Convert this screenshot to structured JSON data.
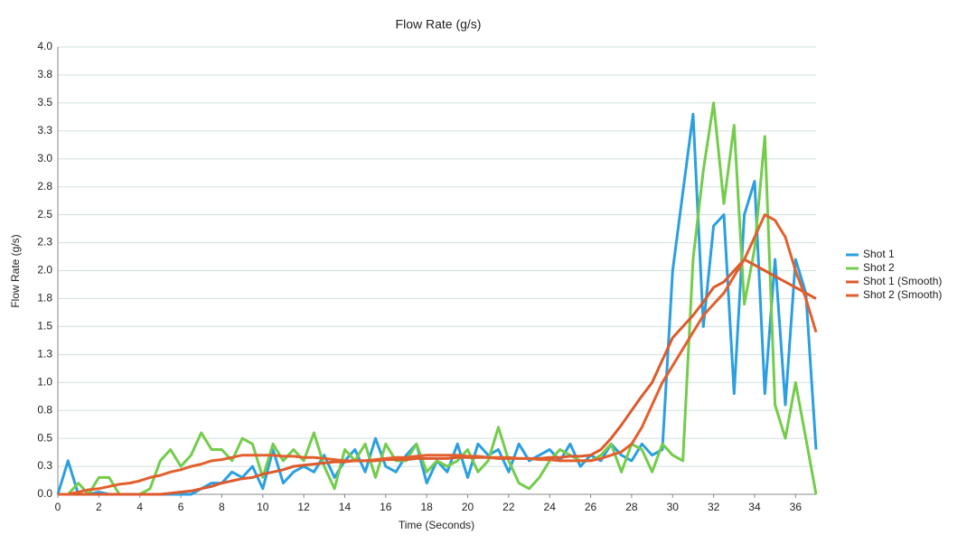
{
  "chart_data": {
    "type": "line",
    "title": "Flow Rate (g/s)",
    "x_label": "Time (Seconds)",
    "y_label": "Flow Rate (g/s)",
    "x": [
      0,
      0.5,
      1,
      1.5,
      2,
      2.5,
      3,
      3.5,
      4,
      4.5,
      5,
      5.5,
      6,
      6.5,
      7,
      7.5,
      8,
      8.5,
      9,
      9.5,
      10,
      10.5,
      11,
      11.5,
      12,
      12.5,
      13,
      13.5,
      14,
      14.5,
      15,
      15.5,
      16,
      16.5,
      17,
      17.5,
      18,
      18.5,
      19,
      19.5,
      20,
      20.5,
      21,
      21.5,
      22,
      22.5,
      23,
      23.5,
      24,
      24.5,
      25,
      25.5,
      26,
      26.5,
      27,
      27.5,
      28,
      28.5,
      29,
      29.5,
      30,
      30.5,
      31,
      31.5,
      32,
      32.5,
      33,
      33.5,
      34,
      34.5,
      35,
      35.5,
      36,
      36.5,
      37
    ],
    "series": [
      {
        "name": "Shot 1",
        "color": "#2b9fe0",
        "values": [
          0,
          0.3,
          0,
          0,
          0.02,
          0,
          0,
          0,
          0,
          0,
          0,
          0,
          0,
          0,
          0.05,
          0.1,
          0.1,
          0.2,
          0.15,
          0.25,
          0.05,
          0.4,
          0.1,
          0.2,
          0.25,
          0.2,
          0.35,
          0.15,
          0.3,
          0.4,
          0.2,
          0.5,
          0.25,
          0.2,
          0.35,
          0.45,
          0.1,
          0.3,
          0.2,
          0.45,
          0.15,
          0.45,
          0.35,
          0.4,
          0.2,
          0.45,
          0.3,
          0.35,
          0.4,
          0.3,
          0.45,
          0.25,
          0.35,
          0.3,
          0.45,
          0.35,
          0.3,
          0.45,
          0.35,
          0.4,
          2.0,
          2.7,
          3.4,
          1.5,
          2.4,
          2.5,
          0.9,
          2.5,
          2.8,
          0.9,
          2.1,
          0.8,
          2.1,
          1.8,
          0.4
        ]
      },
      {
        "name": "Shot 2",
        "color": "#74cc4b",
        "values": [
          0,
          0,
          0.1,
          0,
          0.15,
          0.15,
          0,
          0,
          0,
          0.05,
          0.3,
          0.4,
          0.25,
          0.35,
          0.55,
          0.4,
          0.4,
          0.3,
          0.5,
          0.45,
          0.15,
          0.45,
          0.3,
          0.4,
          0.3,
          0.55,
          0.25,
          0.05,
          0.4,
          0.3,
          0.45,
          0.15,
          0.45,
          0.3,
          0.3,
          0.45,
          0.2,
          0.3,
          0.25,
          0.3,
          0.4,
          0.2,
          0.3,
          0.6,
          0.3,
          0.1,
          0.05,
          0.15,
          0.3,
          0.4,
          0.35,
          0.3,
          0.3,
          0.35,
          0.45,
          0.2,
          0.45,
          0.4,
          0.2,
          0.45,
          0.35,
          0.3,
          2.1,
          2.9,
          3.5,
          2.6,
          3.3,
          1.7,
          2.2,
          3.2,
          0.8,
          0.5,
          1.0,
          0.5,
          0
        ]
      },
      {
        "name": "Shot 1 (Smooth)",
        "color": "#dc5a2c",
        "values": [
          0,
          0,
          0,
          0,
          0,
          0,
          0,
          0,
          0,
          0,
          0,
          0.01,
          0.02,
          0.03,
          0.05,
          0.07,
          0.1,
          0.12,
          0.14,
          0.15,
          0.18,
          0.2,
          0.22,
          0.25,
          0.26,
          0.27,
          0.28,
          0.29,
          0.29,
          0.3,
          0.3,
          0.3,
          0.31,
          0.31,
          0.31,
          0.32,
          0.32,
          0.32,
          0.32,
          0.33,
          0.33,
          0.33,
          0.33,
          0.32,
          0.32,
          0.32,
          0.32,
          0.32,
          0.33,
          0.33,
          0.34,
          0.34,
          0.35,
          0.4,
          0.5,
          0.62,
          0.75,
          0.88,
          1.0,
          1.2,
          1.4,
          1.5,
          1.6,
          1.72,
          1.85,
          1.9,
          2.0,
          2.1,
          2.05,
          2.0,
          1.95,
          1.9,
          1.85,
          1.8,
          1.75
        ]
      },
      {
        "name": "Shot 2 (Smooth)",
        "color": "#e2602e",
        "values": [
          0,
          0,
          0.02,
          0.04,
          0.05,
          0.07,
          0.09,
          0.1,
          0.12,
          0.15,
          0.17,
          0.2,
          0.22,
          0.25,
          0.27,
          0.3,
          0.31,
          0.33,
          0.35,
          0.35,
          0.35,
          0.35,
          0.34,
          0.34,
          0.33,
          0.33,
          0.32,
          0.31,
          0.3,
          0.3,
          0.3,
          0.31,
          0.32,
          0.33,
          0.33,
          0.34,
          0.35,
          0.35,
          0.35,
          0.35,
          0.34,
          0.34,
          0.33,
          0.33,
          0.33,
          0.32,
          0.32,
          0.31,
          0.31,
          0.3,
          0.3,
          0.3,
          0.3,
          0.32,
          0.35,
          0.38,
          0.45,
          0.6,
          0.8,
          1.0,
          1.15,
          1.3,
          1.45,
          1.6,
          1.7,
          1.8,
          1.95,
          2.1,
          2.3,
          2.5,
          2.45,
          2.3,
          2.0,
          1.75,
          1.45
        ]
      }
    ],
    "xlim": [
      0,
      37
    ],
    "xticks": [
      0,
      2,
      4,
      6,
      8,
      10,
      12,
      14,
      16,
      18,
      20,
      22,
      24,
      26,
      28,
      30,
      32,
      34,
      36
    ],
    "ylim": [
      0,
      4
    ],
    "yticks": [
      {
        "value": 0,
        "label": "0.0"
      },
      {
        "value": 0.25,
        "label": "0.3"
      },
      0.5,
      {
        "value": 0.75,
        "label": "0.8"
      },
      {
        "value": 1,
        "label": "1.0"
      },
      {
        "value": 1.25,
        "label": "1.3"
      },
      1.5,
      {
        "value": 1.75,
        "label": "1.8"
      },
      {
        "value": 2,
        "label": "2.0"
      },
      {
        "value": 2.25,
        "label": "2.3"
      },
      2.5,
      {
        "value": 2.75,
        "label": "2.8"
      },
      {
        "value": 3,
        "label": "3.0"
      },
      {
        "value": 3.25,
        "label": "3.3"
      },
      3.5,
      {
        "value": 3.75,
        "label": "3.8"
      },
      {
        "value": 4,
        "label": "4.0"
      }
    ],
    "grid": true,
    "legend": "right"
  }
}
